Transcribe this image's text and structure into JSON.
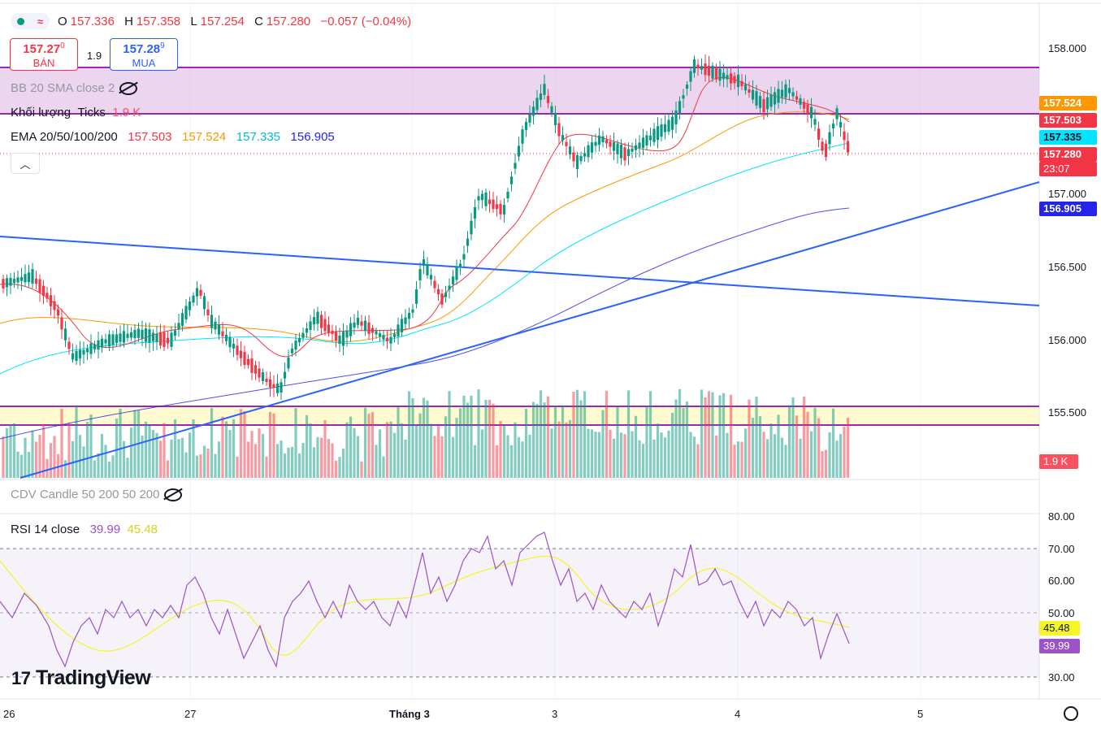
{
  "symbol_header": {
    "mode_icon": "wave-icon",
    "ohlc": [
      {
        "k": "O",
        "v": "157.336"
      },
      {
        "k": "H",
        "v": "157.358"
      },
      {
        "k": "L",
        "v": "157.254"
      },
      {
        "k": "C",
        "v": "157.280"
      }
    ],
    "change": "−0.057 (−0.04%)"
  },
  "quote": {
    "bid_price": "157.27",
    "bid_small": "0",
    "bid_label": "BÁN",
    "spread": "1.9",
    "ask_price": "157.28",
    "ask_small": "9",
    "ask_label": "MUA"
  },
  "indicators": {
    "bb": "BB 20 SMA close 2",
    "volume_name": "Khối lượng",
    "volume_unit": "Ticks",
    "volume_value": "1.9 K",
    "ema_name": "EMA 20/50/100/200",
    "ema_values": [
      "157.503",
      "157.524",
      "157.335",
      "156.905"
    ],
    "cdv": "CDV Candle 50 200 50 200",
    "rsi_name": "RSI 14 close",
    "rsi_values": [
      "39.99",
      "45.48"
    ]
  },
  "price_axis": [
    "158.000",
    "157.000",
    "156.500",
    "156.000",
    "155.500"
  ],
  "price_tags": [
    {
      "text": "157.524",
      "color": "#ff9800"
    },
    {
      "text": "157.503",
      "color": "#f23645"
    },
    {
      "text": "157.335",
      "color": "#00e5ff"
    },
    {
      "text": "157.280",
      "color": "#f23645"
    },
    {
      "text": "23:07",
      "color": "#f23645"
    },
    {
      "text": "156.905",
      "color": "#2424ea"
    },
    {
      "text": "1.9 K",
      "color": "#f7525f"
    }
  ],
  "rsi_axis": [
    "80.00",
    "70.00",
    "60.00",
    "50.00",
    "30.00"
  ],
  "rsi_tags": [
    {
      "text": "45.48",
      "color": "#f5f527"
    },
    {
      "text": "39.99",
      "color": "#9c52c8"
    }
  ],
  "time_axis": [
    "26",
    "27",
    "Tháng 3",
    "3",
    "4",
    "5"
  ],
  "branding": "TradingView",
  "colors": {
    "up": "#089981",
    "down": "#f23645",
    "ema20": "#f23645",
    "ema50": "#ff9800",
    "ema100": "#00e5ff",
    "ema200": "#2424ea"
  }
}
